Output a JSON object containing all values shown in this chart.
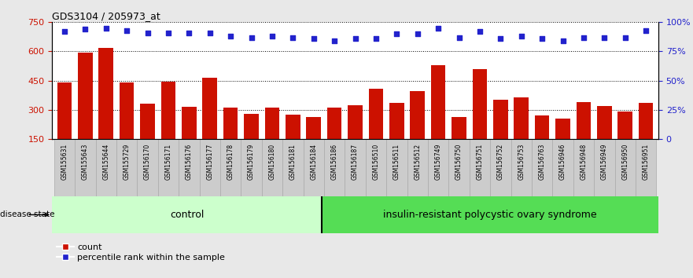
{
  "title": "GDS3104 / 205973_at",
  "samples": [
    "GSM155631",
    "GSM155643",
    "GSM155644",
    "GSM155729",
    "GSM156170",
    "GSM156171",
    "GSM156176",
    "GSM156177",
    "GSM156178",
    "GSM156179",
    "GSM156180",
    "GSM156181",
    "GSM156184",
    "GSM156186",
    "GSM156187",
    "GSM156510",
    "GSM156511",
    "GSM156512",
    "GSM156749",
    "GSM156750",
    "GSM156751",
    "GSM156752",
    "GSM156753",
    "GSM156763",
    "GSM156946",
    "GSM156948",
    "GSM156949",
    "GSM156950",
    "GSM156951"
  ],
  "counts": [
    440,
    595,
    620,
    440,
    330,
    445,
    315,
    465,
    310,
    280,
    310,
    275,
    265,
    310,
    325,
    410,
    335,
    395,
    530,
    265,
    510,
    350,
    365,
    270,
    255,
    340,
    320,
    290,
    335
  ],
  "percentiles": [
    92,
    94,
    95,
    93,
    91,
    91,
    91,
    91,
    88,
    87,
    88,
    87,
    86,
    84,
    86,
    86,
    90,
    90,
    95,
    87,
    92,
    86,
    88,
    86,
    84,
    87,
    87,
    87,
    93
  ],
  "control_count": 13,
  "insulin_count": 16,
  "group_labels": [
    "control",
    "insulin-resistant polycystic ovary syndrome"
  ],
  "bar_color": "#cc1100",
  "dot_color": "#2222cc",
  "ylim_left": [
    150,
    750
  ],
  "yticks_left": [
    150,
    300,
    450,
    600,
    750
  ],
  "ylim_right": [
    0,
    100
  ],
  "yticks_right": [
    0,
    25,
    50,
    75,
    100
  ],
  "bg_color": "#dddddd",
  "plot_bg": "#ffffff",
  "legend_count_label": "count",
  "legend_pct_label": "percentile rank within the sample",
  "disease_state_label": "disease state"
}
